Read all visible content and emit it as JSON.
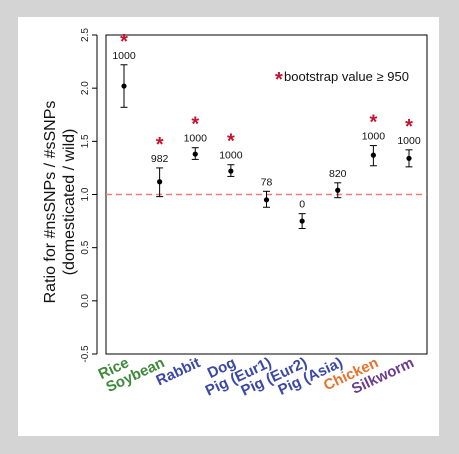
{
  "chart_data": {
    "type": "scatter",
    "ylabel_lines": [
      "Ratio for #nsSNPs / #sSNPs",
      "(domesticated / wild)"
    ],
    "yticks": [
      -0.5,
      0.0,
      0.5,
      1.0,
      1.5,
      2.0,
      2.5
    ],
    "ytick_labels": [
      "-0.5",
      "0.0",
      "0.5",
      "1.0",
      "1.5",
      "2.0",
      "2.5"
    ],
    "ylim": [
      -0.5,
      2.5
    ],
    "reference_line": 1.0,
    "reference_line_color": "#f07b7b",
    "annotation_star": "*",
    "annotation_text": "bootstrap value ≥ 950",
    "star_color": "#c8102e",
    "categories": [
      "Rice",
      "Soybean",
      "Rabbit",
      "Dog",
      "Pig (Eur1)",
      "Pig (Eur2)",
      "Pig (Asia)",
      "Chicken",
      "Silkworm"
    ],
    "category_colors": [
      "#3e8a3b",
      "#3e8a3b",
      "#3b48a8",
      "#3b48a8",
      "#3b48a8",
      "#3b48a8",
      "#3b48a8",
      "#e8722e",
      "#6a3d8f"
    ],
    "values": [
      2.02,
      1.12,
      1.38,
      1.22,
      0.95,
      0.75,
      1.04,
      1.37,
      1.34
    ],
    "err_low": [
      1.82,
      0.98,
      1.33,
      1.17,
      0.88,
      0.68,
      0.97,
      1.27,
      1.26
    ],
    "err_high": [
      2.22,
      1.25,
      1.44,
      1.28,
      1.03,
      0.82,
      1.11,
      1.46,
      1.42
    ],
    "bootstrap": [
      "1000",
      "982",
      "1000",
      "1000",
      "78",
      "0",
      "820",
      "1000",
      "1000"
    ],
    "significant": [
      true,
      true,
      true,
      true,
      false,
      false,
      false,
      true,
      true
    ],
    "grid": false
  }
}
